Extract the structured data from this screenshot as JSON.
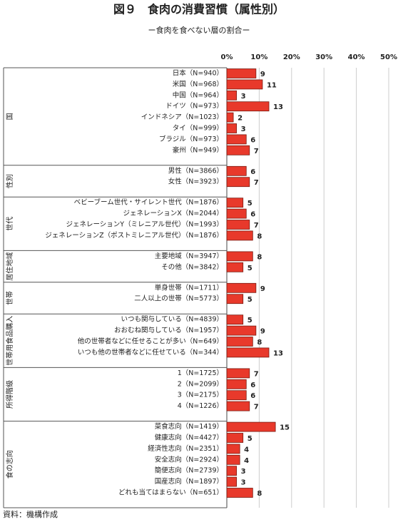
{
  "chart_data": {
    "type": "bar",
    "title": "図９　食肉の消費習慣（属性別）",
    "subtitle": "ー食肉を食べない層の割合ー",
    "source": "資料：機構作成",
    "color": "#e8392b",
    "xlim": [
      0,
      50
    ],
    "xticks": [
      {
        "value": 0,
        "label": "0%"
      },
      {
        "value": 10,
        "label": "10%"
      },
      {
        "value": 20,
        "label": "20%"
      },
      {
        "value": 30,
        "label": "30%"
      },
      {
        "value": 40,
        "label": "40%"
      },
      {
        "value": 50,
        "label": "50%"
      }
    ],
    "grid": true,
    "groups": [
      {
        "name": "国",
        "categories": [
          "日本（N=940）",
          "米国（N=968）",
          "中国（N=964）",
          "ドイツ（N=973）",
          "インドネシア（N=1023）",
          "タイ（N=999）",
          "ブラジル（N=973）",
          "豪州（N=949）"
        ],
        "values": [
          9,
          11,
          3,
          13,
          2,
          3,
          6,
          7
        ]
      },
      {
        "name": "性別",
        "categories": [
          "男性（N=3866）",
          "女性（N=3923）"
        ],
        "values": [
          6,
          7
        ]
      },
      {
        "name": "世代",
        "categories": [
          "ベビーブーム世代・サイレント世代（N=1876）",
          "ジェネレーションX（N=2044）",
          "ジェネレーションY（ミレニアル世代）（N=1993）",
          "ジェネレーションZ（ポストミレニアル世代）（N=1876）"
        ],
        "values": [
          5,
          6,
          7,
          8
        ]
      },
      {
        "name": "居住地域",
        "categories": [
          "主要地域（N=3947）",
          "その他（N=3842）"
        ],
        "values": [
          8,
          5
        ]
      },
      {
        "name": "世帯",
        "categories": [
          "単身世帯（N=1711）",
          "二人以上の世帯（N=5773）"
        ],
        "values": [
          9,
          5
        ]
      },
      {
        "name": "世帯用食品購入",
        "categories": [
          "いつも関与している（N=4839）",
          "おおむね関与している（N=1957）",
          "他の世帯者などに任せることが多い（N=649）",
          "いつも他の世帯者などに任せている（N=344）"
        ],
        "values": [
          5,
          9,
          8,
          13
        ]
      },
      {
        "name": "所得階級",
        "categories": [
          "1（N=1725）",
          "2（N=2099）",
          "3（N=2175）",
          "4（N=1226）"
        ],
        "values": [
          7,
          6,
          6,
          7
        ]
      },
      {
        "name": "食の志向",
        "categories": [
          "菜食志向（N=1419）",
          "健康志向（N=4427）",
          "経済性志向（N=2351）",
          "安全志向（N=2924）",
          "簡便志向（N=2739）",
          "国産志向（N=1897）",
          "どれも当てはまらない（N=651）"
        ],
        "values": [
          15,
          5,
          4,
          4,
          3,
          3,
          8
        ]
      }
    ]
  }
}
